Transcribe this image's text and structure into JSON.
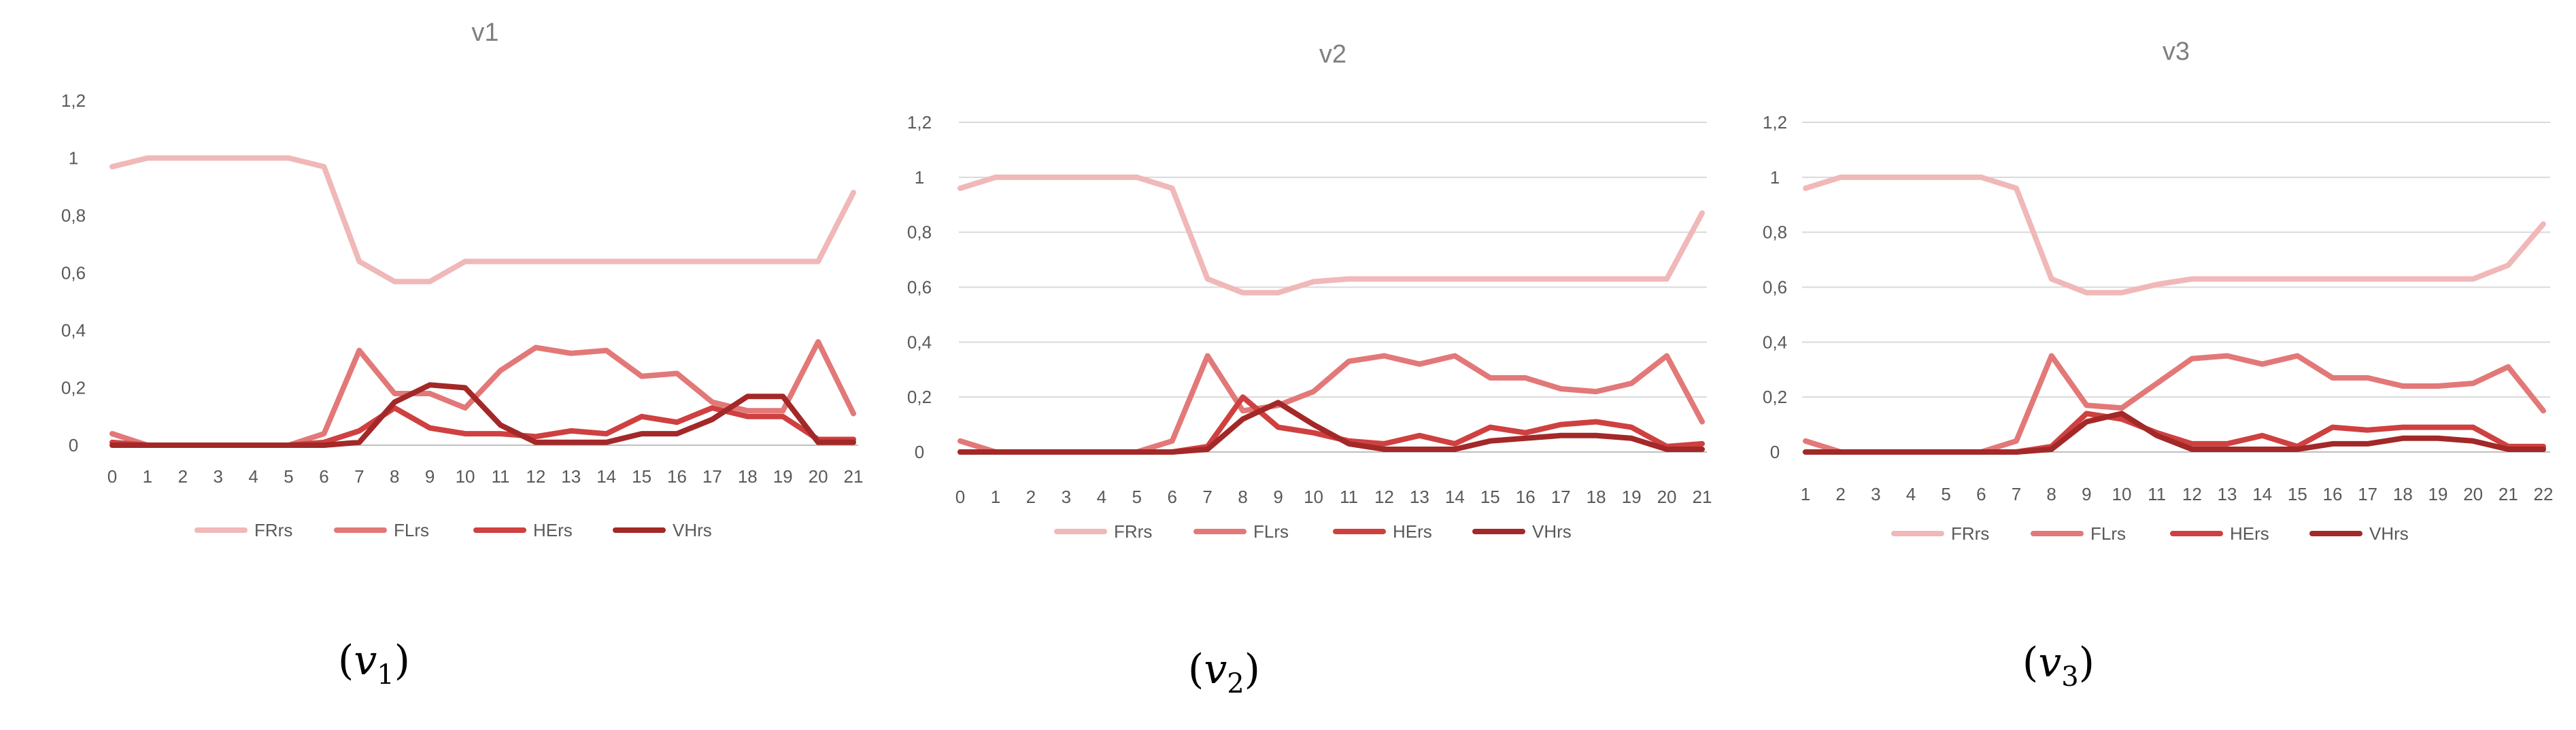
{
  "colors": {
    "FRrs": "#f0b8b8",
    "FLrs": "#e27878",
    "HErs": "#cf4040",
    "VHrs": "#a32828",
    "grid": "#d9d9d9",
    "axis": "#bfbfbf",
    "tick_text": "#595959",
    "title_text": "#7f7f7f"
  },
  "chart_data": [
    {
      "type": "line",
      "title": "v1",
      "caption": "(v1)",
      "xlabel": "",
      "ylabel": "",
      "ylim": [
        0,
        1.2
      ],
      "yticks": [
        "0",
        "0,2",
        "0,4",
        "0,6",
        "0,8",
        "1",
        "1,2"
      ],
      "grid": false,
      "legend": "bottom",
      "x": [
        "0",
        "1",
        "2",
        "3",
        "4",
        "5",
        "6",
        "7",
        "8",
        "9",
        "10",
        "11",
        "12",
        "13",
        "14",
        "15",
        "16",
        "17",
        "18",
        "19",
        "20",
        "21"
      ],
      "series": [
        {
          "name": "FRrs",
          "values": [
            0.97,
            1,
            1,
            1,
            1,
            1,
            0.97,
            0.64,
            0.57,
            0.57,
            0.64,
            0.64,
            0.64,
            0.64,
            0.64,
            0.64,
            0.64,
            0.64,
            0.64,
            0.64,
            0.64,
            0.88
          ]
        },
        {
          "name": "FLrs",
          "values": [
            0.04,
            0,
            0,
            0,
            0,
            0,
            0.04,
            0.33,
            0.18,
            0.18,
            0.13,
            0.26,
            0.34,
            0.32,
            0.33,
            0.24,
            0.25,
            0.15,
            0.12,
            0.12,
            0.36,
            0.11
          ]
        },
        {
          "name": "HErs",
          "values": [
            0.01,
            0,
            0,
            0,
            0,
            0,
            0.01,
            0.05,
            0.13,
            0.06,
            0.04,
            0.04,
            0.03,
            0.05,
            0.04,
            0.1,
            0.08,
            0.13,
            0.1,
            0.1,
            0.02,
            0.02
          ]
        },
        {
          "name": "VHrs",
          "values": [
            0,
            0,
            0,
            0,
            0,
            0,
            0,
            0.01,
            0.15,
            0.21,
            0.2,
            0.07,
            0.01,
            0.01,
            0.01,
            0.04,
            0.04,
            0.09,
            0.17,
            0.17,
            0.01,
            0.01
          ]
        }
      ]
    },
    {
      "type": "line",
      "title": "v2",
      "caption": "(v2)",
      "xlabel": "",
      "ylabel": "",
      "ylim": [
        0,
        1.2
      ],
      "yticks": [
        "0",
        "0,2",
        "0,4",
        "0,6",
        "0,8",
        "1",
        "1,2"
      ],
      "grid": true,
      "legend": "bottom",
      "x": [
        "0",
        "1",
        "2",
        "3",
        "4",
        "5",
        "6",
        "7",
        "8",
        "9",
        "10",
        "11",
        "12",
        "13",
        "14",
        "15",
        "16",
        "17",
        "18",
        "19",
        "20",
        "21"
      ],
      "series": [
        {
          "name": "FRrs",
          "values": [
            0.96,
            1,
            1,
            1,
            1,
            1,
            0.96,
            0.63,
            0.58,
            0.58,
            0.62,
            0.63,
            0.63,
            0.63,
            0.63,
            0.63,
            0.63,
            0.63,
            0.63,
            0.63,
            0.63,
            0.87
          ]
        },
        {
          "name": "FLrs",
          "values": [
            0.04,
            0,
            0,
            0,
            0,
            0,
            0.04,
            0.35,
            0.15,
            0.17,
            0.22,
            0.33,
            0.35,
            0.32,
            0.35,
            0.27,
            0.27,
            0.23,
            0.22,
            0.25,
            0.35,
            0.11
          ]
        },
        {
          "name": "HErs",
          "values": [
            0,
            0,
            0,
            0,
            0,
            0,
            0,
            0.02,
            0.2,
            0.09,
            0.07,
            0.04,
            0.03,
            0.06,
            0.03,
            0.09,
            0.07,
            0.1,
            0.11,
            0.09,
            0.02,
            0.03
          ]
        },
        {
          "name": "VHrs",
          "values": [
            0,
            0,
            0,
            0,
            0,
            0,
            0,
            0.01,
            0.12,
            0.18,
            0.1,
            0.03,
            0.01,
            0.01,
            0.01,
            0.04,
            0.05,
            0.06,
            0.06,
            0.05,
            0.01,
            0.01
          ]
        }
      ]
    },
    {
      "type": "line",
      "title": "v3",
      "caption": "(v3)",
      "xlabel": "",
      "ylabel": "",
      "ylim": [
        0,
        1.2
      ],
      "yticks": [
        "0",
        "0,2",
        "0,4",
        "0,6",
        "0,8",
        "1",
        "1,2"
      ],
      "grid": true,
      "legend": "bottom",
      "x": [
        "1",
        "2",
        "3",
        "4",
        "5",
        "6",
        "7",
        "8",
        "9",
        "10",
        "11",
        "12",
        "13",
        "14",
        "15",
        "16",
        "17",
        "18",
        "19",
        "20",
        "21",
        "22"
      ],
      "series": [
        {
          "name": "FRrs",
          "values": [
            0.96,
            1,
            1,
            1,
            1,
            1,
            0.96,
            0.63,
            0.58,
            0.58,
            0.61,
            0.63,
            0.63,
            0.63,
            0.63,
            0.63,
            0.63,
            0.63,
            0.63,
            0.63,
            0.68,
            0.83
          ]
        },
        {
          "name": "FLrs",
          "values": [
            0.04,
            0,
            0,
            0,
            0,
            0,
            0.04,
            0.35,
            0.17,
            0.16,
            0.25,
            0.34,
            0.35,
            0.32,
            0.35,
            0.27,
            0.27,
            0.24,
            0.24,
            0.25,
            0.31,
            0.15
          ]
        },
        {
          "name": "HErs",
          "values": [
            0,
            0,
            0,
            0,
            0,
            0,
            0,
            0.02,
            0.14,
            0.12,
            0.07,
            0.03,
            0.03,
            0.06,
            0.02,
            0.09,
            0.08,
            0.09,
            0.09,
            0.09,
            0.02,
            0.02
          ]
        },
        {
          "name": "VHrs",
          "values": [
            0,
            0,
            0,
            0,
            0,
            0,
            0,
            0.01,
            0.11,
            0.14,
            0.06,
            0.01,
            0.01,
            0.01,
            0.01,
            0.03,
            0.03,
            0.05,
            0.05,
            0.04,
            0.01,
            0.01
          ]
        }
      ]
    }
  ]
}
